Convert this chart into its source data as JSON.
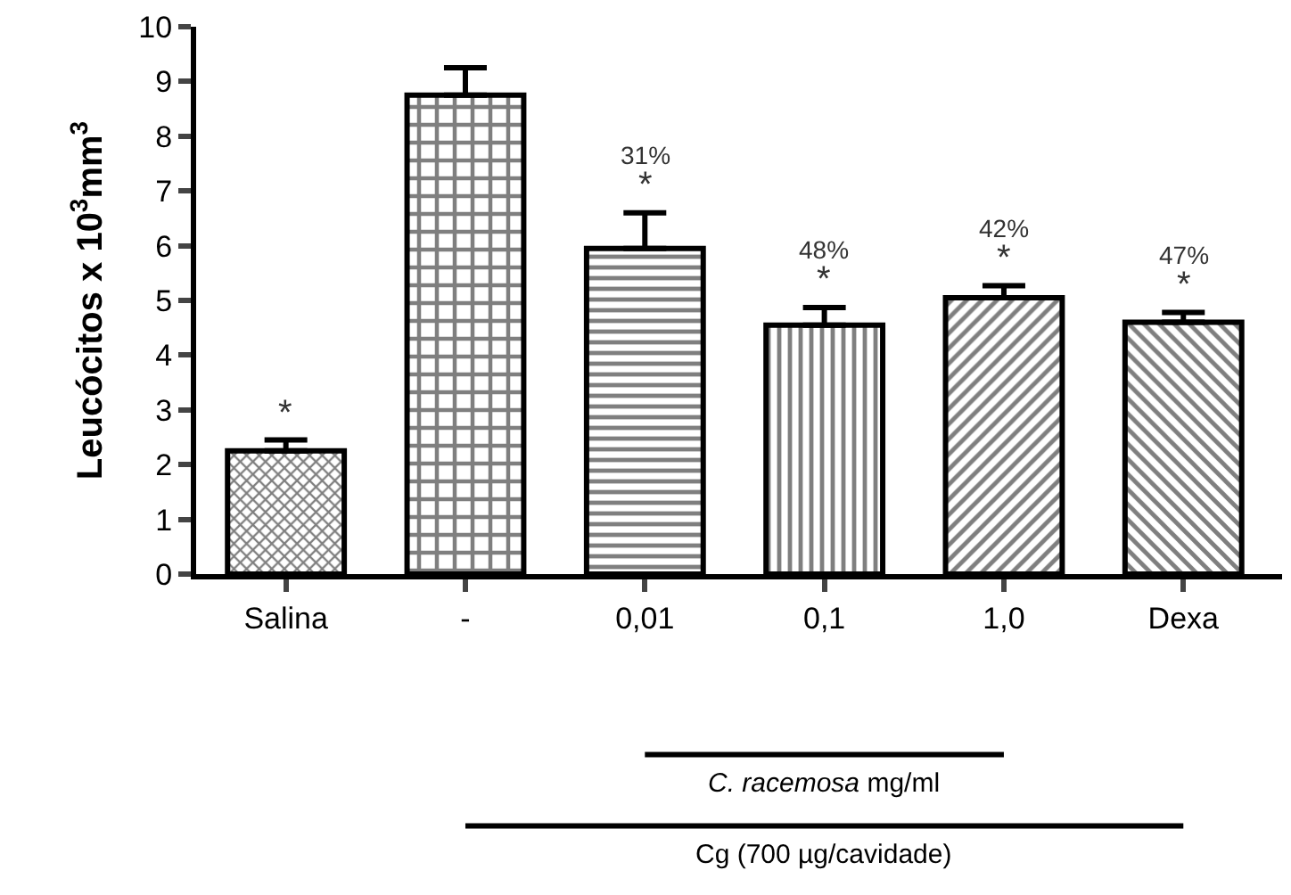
{
  "chart_data": {
    "type": "bar",
    "ylabel": "Leucócitos x 10$^{3}$mm$^{3}$",
    "categories": [
      "Salina",
      "-",
      "0,01",
      "0,1",
      "1,0",
      "Dexa"
    ],
    "values": [
      2.25,
      8.75,
      5.95,
      4.55,
      5.05,
      4.6
    ],
    "errors": [
      [
        2.25,
        2.45
      ],
      [
        8.75,
        9.25
      ],
      [
        5.95,
        6.6
      ],
      [
        4.55,
        4.87
      ],
      [
        5.05,
        5.27
      ],
      [
        4.6,
        4.78
      ]
    ],
    "color": "#000000",
    "ylim": [
      0,
      10
    ],
    "yticks": [
      0,
      1,
      2,
      3,
      4,
      5,
      6,
      7,
      8,
      9,
      10
    ],
    "legend": false,
    "annotations": [
      "*",
      "31%",
      "*",
      "48%",
      "*",
      "42%",
      "*",
      "47%",
      "*",
      "C. racemosa mg/ml",
      "Cg (700 µg/cavidade)"
    ]
  }
}
